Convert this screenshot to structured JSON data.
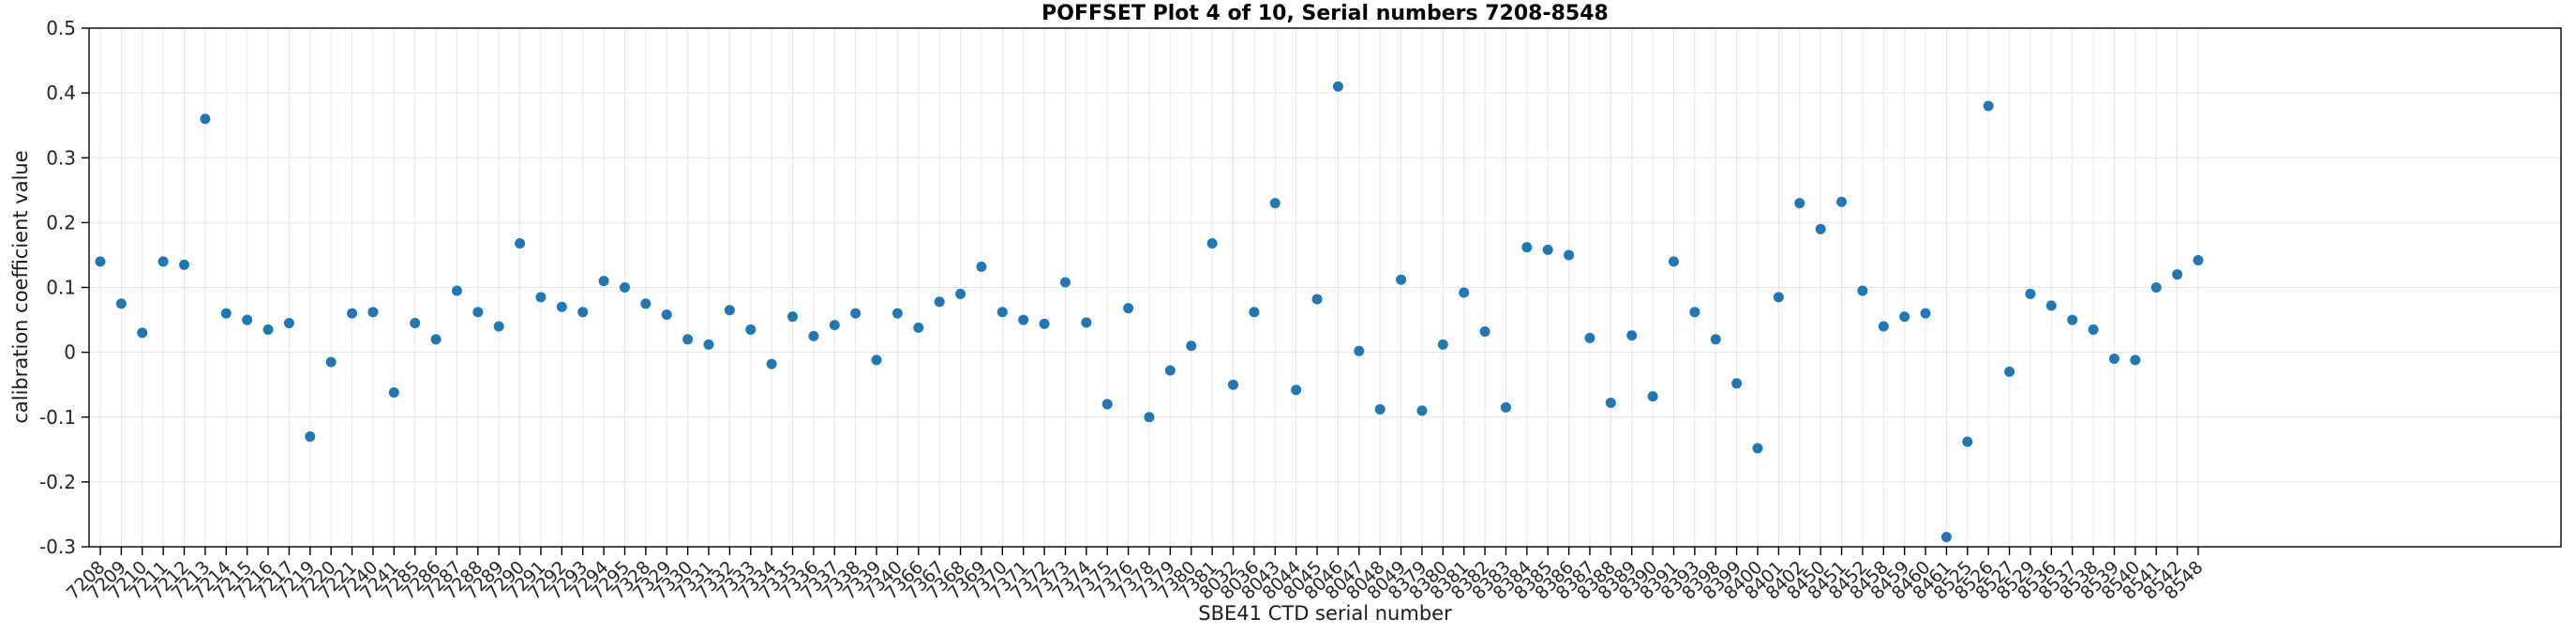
{
  "chart_data": {
    "type": "scatter",
    "title": "POFFSET Plot 4 of 10, Serial numbers 7208-8548",
    "xlabel": "SBE41 CTD serial number",
    "ylabel": "calibration coefficient value",
    "ylim": [
      -0.3,
      0.5
    ],
    "yticks": [
      0.5,
      0.4,
      0.3,
      0.2,
      0.1,
      0,
      -0.1,
      -0.2,
      -0.3
    ],
    "ytick_labels": [
      "0.5",
      "0.4",
      "0.3",
      "0.2",
      "0.1",
      "0",
      "-0.1",
      "-0.2",
      "-0.3"
    ],
    "grid": true,
    "legend": "none",
    "marker": "filled-circle",
    "marker_color": "#1f77b4",
    "grid_color": "#e6e6e6",
    "axis_color": "#000000",
    "tick_label_color": "#262626",
    "categories": [
      "7208",
      "7209",
      "7210",
      "7211",
      "7212",
      "7213",
      "7214",
      "7215",
      "7216",
      "7217",
      "7219",
      "7220",
      "7221",
      "7240",
      "7241",
      "7285",
      "7286",
      "7287",
      "7288",
      "7289",
      "7290",
      "7291",
      "7292",
      "7293",
      "7294",
      "7295",
      "7328",
      "7329",
      "7330",
      "7331",
      "7332",
      "7333",
      "7334",
      "7335",
      "7336",
      "7337",
      "7338",
      "7339",
      "7340",
      "7366",
      "7367",
      "7368",
      "7369",
      "7370",
      "7371",
      "7372",
      "7373",
      "7374",
      "7375",
      "7376",
      "7378",
      "7379",
      "7380",
      "7381",
      "8032",
      "8036",
      "8043",
      "8044",
      "8045",
      "8046",
      "8047",
      "8048",
      "8049",
      "8379",
      "8380",
      "8381",
      "8382",
      "8383",
      "8384",
      "8385",
      "8386",
      "8387",
      "8388",
      "8389",
      "8390",
      "8391",
      "8393",
      "8398",
      "8399",
      "8400",
      "8401",
      "8402",
      "8450",
      "8451",
      "8452",
      "8458",
      "8459",
      "8460",
      "8461",
      "8525",
      "8526",
      "8527",
      "8529",
      "8536",
      "8537",
      "8538",
      "8539",
      "8540",
      "8541",
      "8542",
      "8548"
    ],
    "values": [
      0.14,
      0.075,
      0.03,
      0.14,
      0.135,
      0.36,
      0.06,
      0.05,
      0.035,
      0.045,
      -0.13,
      -0.015,
      0.06,
      0.062,
      -0.062,
      0.045,
      0.02,
      0.095,
      0.062,
      0.04,
      0.168,
      0.085,
      0.07,
      0.062,
      0.11,
      0.1,
      0.075,
      0.058,
      0.02,
      0.012,
      0.065,
      0.035,
      -0.018,
      0.055,
      0.025,
      0.042,
      0.06,
      -0.012,
      0.06,
      0.038,
      0.078,
      0.09,
      0.132,
      0.062,
      0.05,
      0.044,
      0.108,
      0.046,
      -0.08,
      0.068,
      -0.1,
      -0.028,
      0.01,
      0.168,
      -0.05,
      0.062,
      0.23,
      -0.058,
      0.082,
      0.41,
      0.002,
      -0.088,
      0.112,
      -0.09,
      0.012,
      0.092,
      0.032,
      -0.085,
      0.162,
      0.158,
      0.15,
      0.022,
      -0.078,
      0.026,
      -0.068,
      0.14,
      0.062,
      0.02,
      -0.048,
      -0.148,
      0.085,
      0.23,
      0.19,
      0.232,
      0.095,
      0.04,
      0.055,
      0.06,
      -0.285,
      -0.138,
      0.38,
      -0.03,
      0.09,
      0.072,
      0.05,
      0.035,
      -0.01,
      -0.012,
      0.1,
      0.12,
      0.142
    ]
  }
}
